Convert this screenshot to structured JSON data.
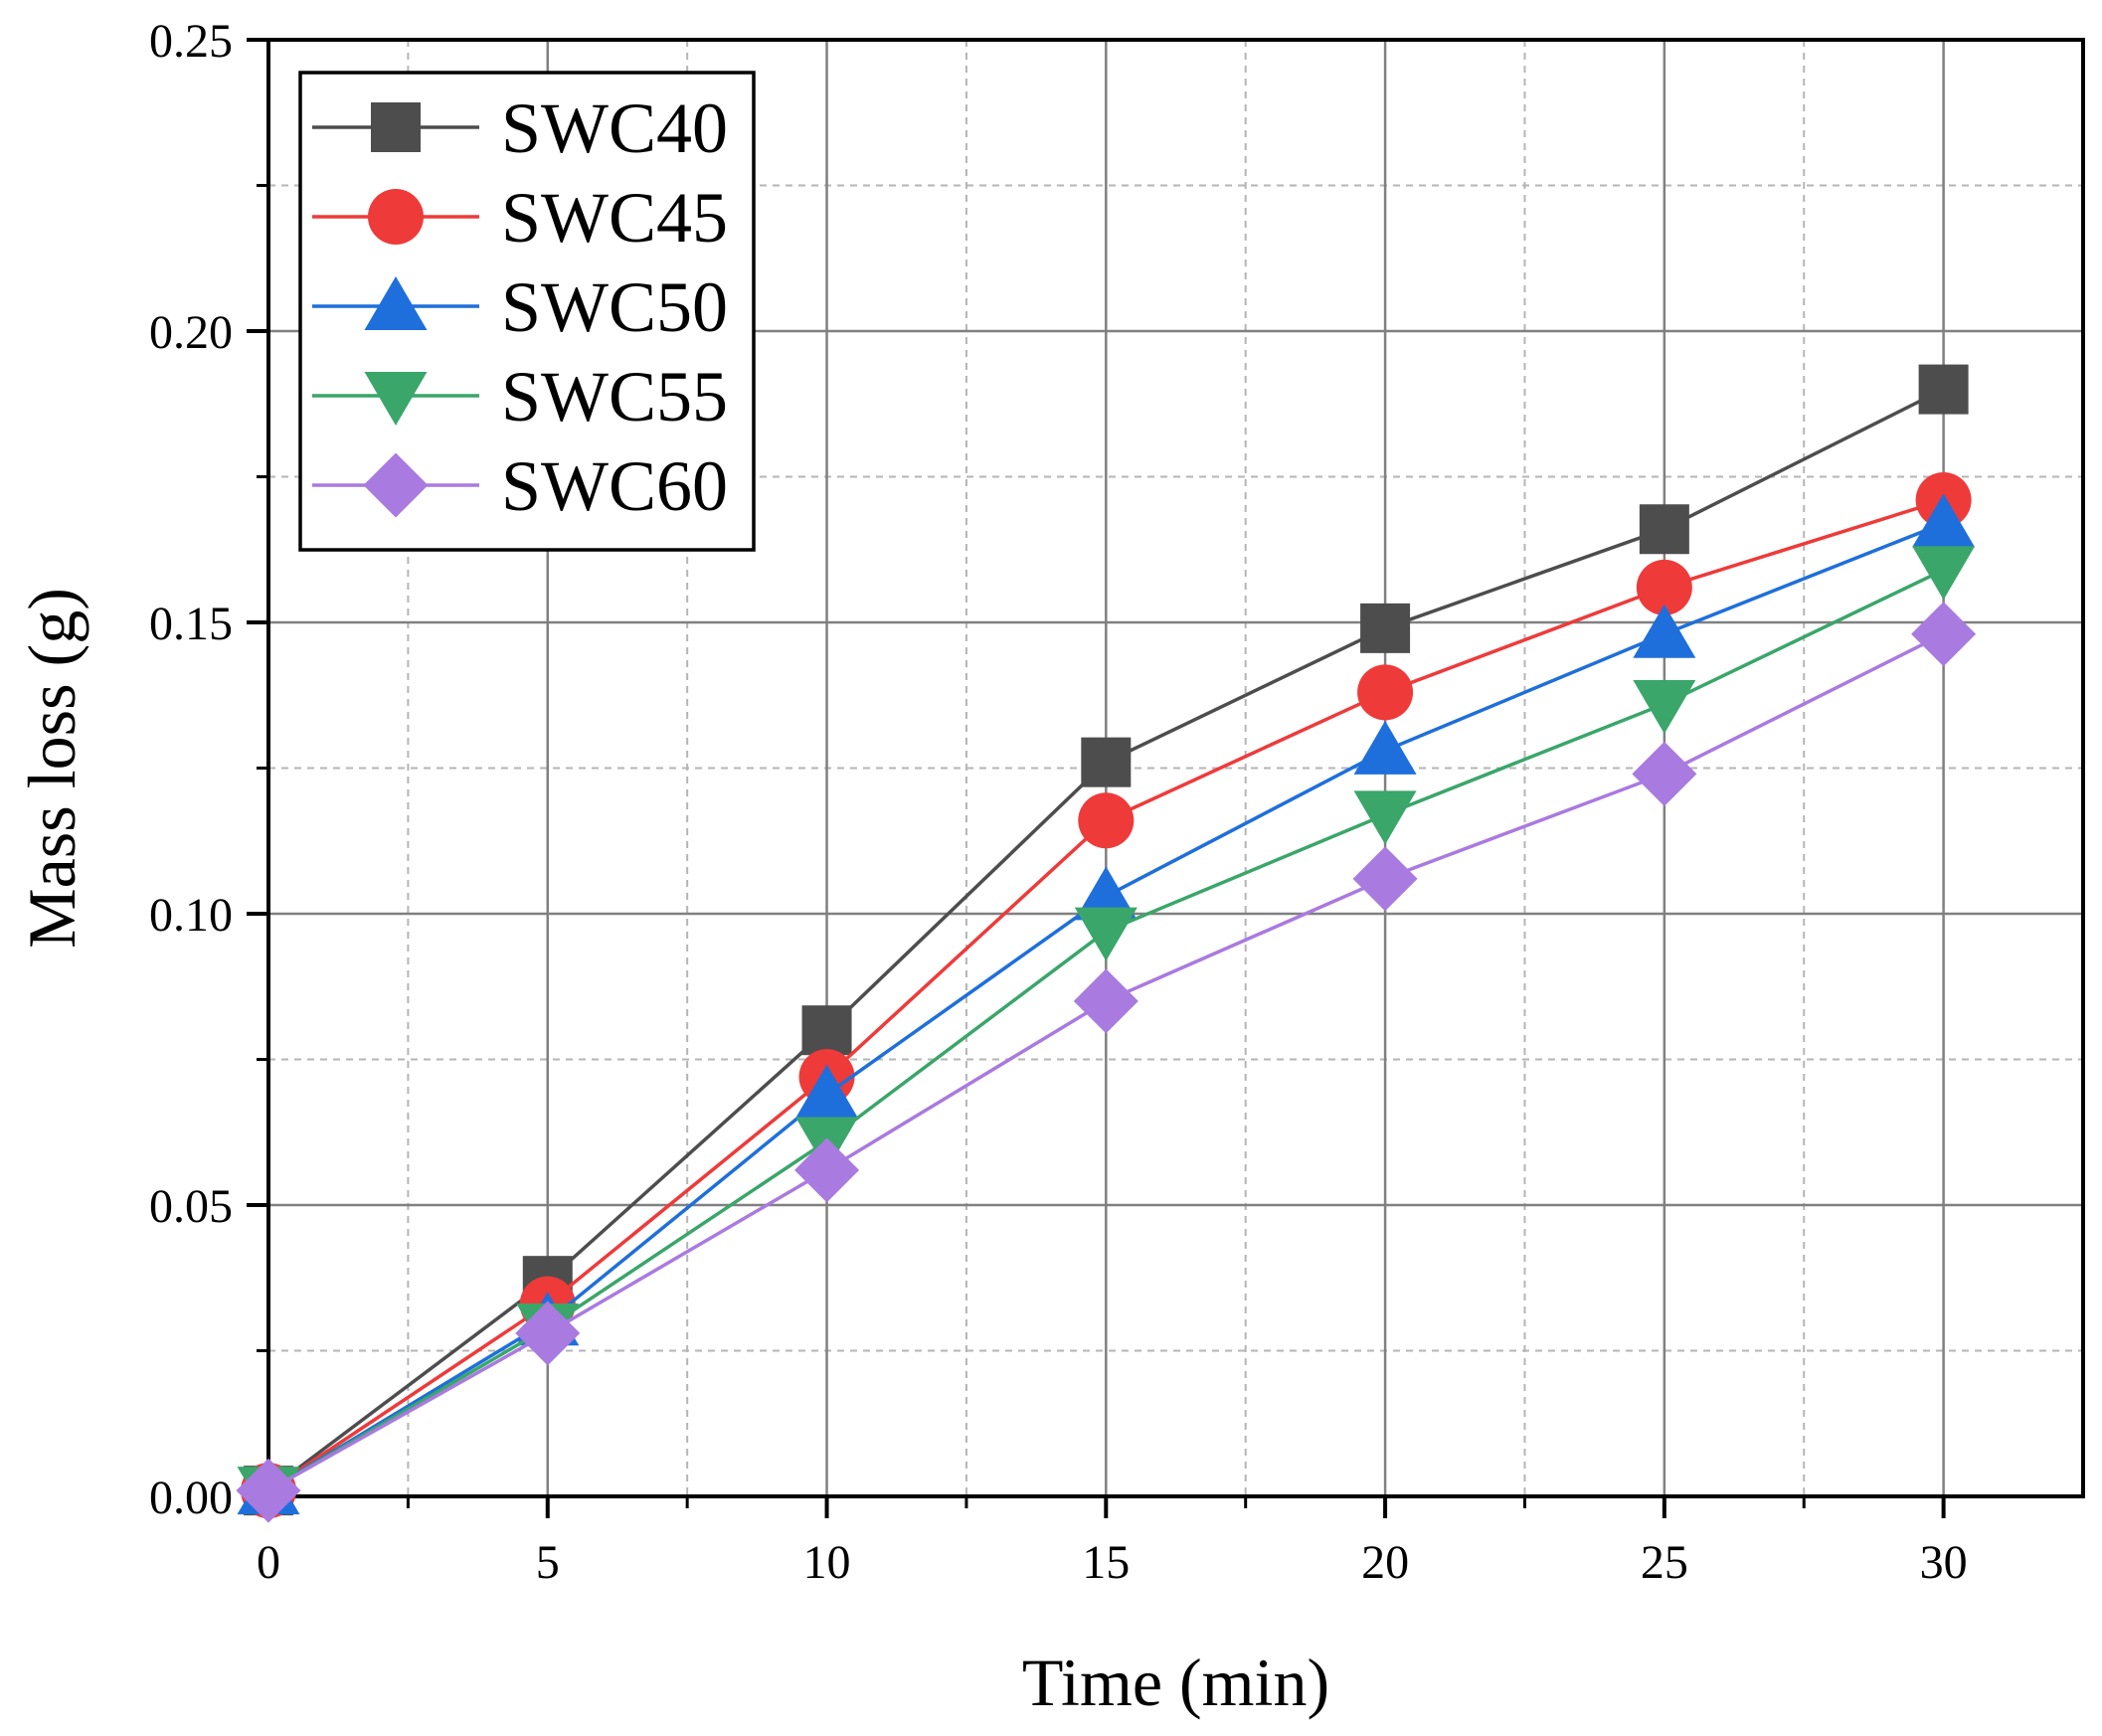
{
  "chart_data": {
    "type": "line",
    "title": "",
    "xlabel": "Time (min)",
    "ylabel": "Mass loss (g)",
    "xlim": [
      0,
      32.5
    ],
    "ylim": [
      0,
      0.25
    ],
    "x_ticks": [
      0,
      5,
      10,
      15,
      20,
      25,
      30
    ],
    "x_tick_labels": [
      "0",
      "5",
      "10",
      "15",
      "20",
      "25",
      "30"
    ],
    "y_ticks": [
      0,
      0.05,
      0.1,
      0.15,
      0.2,
      0.25
    ],
    "y_tick_labels": [
      "0.00",
      "0.05",
      "0.10",
      "0.15",
      "0.20",
      "0.25"
    ],
    "grid": true,
    "legend_position": "top-left",
    "x": [
      0,
      5,
      10,
      15,
      20,
      25,
      30
    ],
    "series": [
      {
        "name": "SWC40",
        "color": "#4d4d4d",
        "marker": "square",
        "values": [
          0.001,
          0.037,
          0.08,
          0.126,
          0.149,
          0.166,
          0.19
        ]
      },
      {
        "name": "SWC45",
        "color": "#ef3a3a",
        "marker": "circle",
        "values": [
          0.001,
          0.033,
          0.072,
          0.116,
          0.138,
          0.156,
          0.171
        ]
      },
      {
        "name": "SWC50",
        "color": "#1e6fdc",
        "marker": "triangle-up",
        "values": [
          0.001,
          0.03,
          0.069,
          0.103,
          0.128,
          0.148,
          0.167
        ]
      },
      {
        "name": "SWC55",
        "color": "#3aa66a",
        "marker": "triangle-down",
        "values": [
          0.001,
          0.029,
          0.061,
          0.097,
          0.117,
          0.136,
          0.159
        ]
      },
      {
        "name": "SWC60",
        "color": "#a97ae0",
        "marker": "diamond",
        "values": [
          0.001,
          0.028,
          0.056,
          0.085,
          0.106,
          0.124,
          0.148
        ]
      }
    ]
  }
}
